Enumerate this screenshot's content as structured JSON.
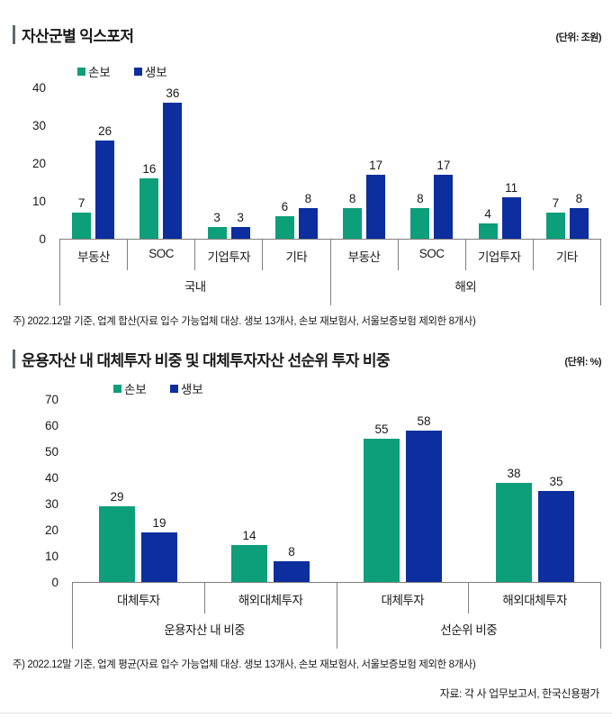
{
  "source": "자료: 각 사 업무보고서, 한국신용평가",
  "colors": {
    "sonbo_green": "#0D9E7A",
    "saengbo_navy": "#0C2E9E",
    "axis_gray": "#7f7f7f"
  },
  "chart_data": [
    {
      "type": "bar",
      "title": "자산군별 익스포저",
      "unit": "(단위: 조원)",
      "ylim": [
        0,
        40
      ],
      "yticks": [
        0,
        10,
        20,
        30,
        40
      ],
      "grid": false,
      "legend_position": "top-left",
      "groups": [
        {
          "label": "국내",
          "categories": [
            "부동산",
            "SOC",
            "기업투자",
            "기타"
          ]
        },
        {
          "label": "해외",
          "categories": [
            "부동산",
            "SOC",
            "기업투자",
            "기타"
          ]
        }
      ],
      "series": [
        {
          "name": "손보",
          "color": "#0D9E7A",
          "values": [
            7,
            16,
            3,
            6,
            8,
            8,
            4,
            7
          ]
        },
        {
          "name": "생보",
          "color": "#0C2E9E",
          "values": [
            26,
            36,
            3,
            8,
            17,
            17,
            11,
            8
          ]
        }
      ],
      "note": "주) 2022.12말 기준, 업계 합산(자료 입수 가능업체 대상. 생보 13개사, 손보 재보험사, 서울보증보험 제외한 8개사)"
    },
    {
      "type": "bar",
      "title": "운용자산 내 대체투자 비중 및 대체투자자산 선순위 투자 비중",
      "unit": "(단위: %)",
      "ylim": [
        0,
        70
      ],
      "yticks": [
        0,
        10,
        20,
        30,
        40,
        50,
        60,
        70
      ],
      "grid": false,
      "legend_position": "top-left",
      "groups": [
        {
          "label": "운용자산 내 비중",
          "categories": [
            "대체투자",
            "해외대체투자"
          ]
        },
        {
          "label": "선순위 비중",
          "categories": [
            "대체투자",
            "해외대체투자"
          ]
        }
      ],
      "series": [
        {
          "name": "손보",
          "color": "#0D9E7A",
          "values": [
            29,
            14,
            55,
            38
          ]
        },
        {
          "name": "생보",
          "color": "#0C2E9E",
          "values": [
            19,
            8,
            58,
            35
          ]
        }
      ],
      "note": "주) 2022.12말 기준, 업계 평균(자료 입수 가능업체 대상. 생보 13개사, 손보 재보험사, 서울보증보험 제외한 8개사)"
    }
  ]
}
